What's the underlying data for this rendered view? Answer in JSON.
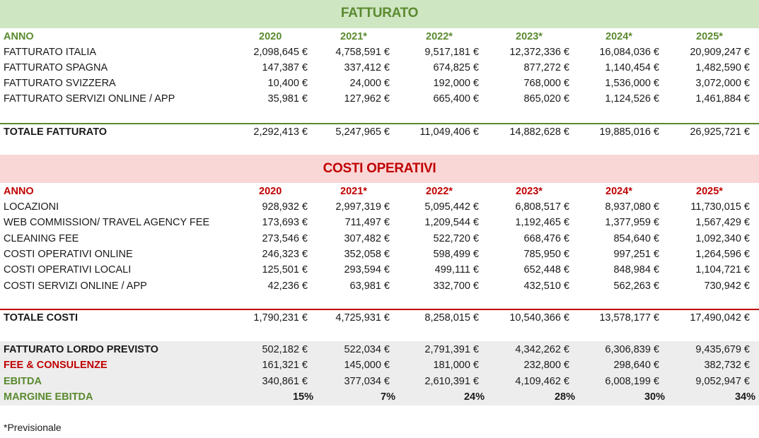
{
  "colors": {
    "revenue_band": "#cfe6c3",
    "revenue_accent": "#5a8a2f",
    "cost_band": "#fad7d7",
    "cost_accent": "#c00000",
    "summary_band": "#ededed"
  },
  "revenue": {
    "title": "FATTURATO",
    "header": {
      "label": "ANNO",
      "years": [
        "2020",
        "2021*",
        "2022*",
        "2023*",
        "2024*",
        "2025*"
      ]
    },
    "rows": [
      {
        "label": "FATTURATO ITALIA",
        "values": [
          "2,098,645 €",
          "4,758,591 €",
          "9,517,181 €",
          "12,372,336 €",
          "16,084,036 €",
          "20,909,247 €"
        ]
      },
      {
        "label": "FATTURATO SPAGNA",
        "values": [
          "147,387 €",
          "337,412 €",
          "674,825 €",
          "877,272 €",
          "1,140,454 €",
          "1,482,590 €"
        ]
      },
      {
        "label": "FATTURATO SVIZZERA",
        "values": [
          "10,400 €",
          "24,000 €",
          "192,000 €",
          "768,000 €",
          "1,536,000 €",
          "3,072,000 €"
        ]
      },
      {
        "label": "FATTURATO SERVIZI ONLINE / APP",
        "values": [
          "35,981 €",
          "127,962 €",
          "665,400 €",
          "865,020 €",
          "1,124,526 €",
          "1,461,884 €"
        ]
      }
    ],
    "total": {
      "label": "TOTALE FATTURATO",
      "values": [
        "2,292,413 €",
        "5,247,965 €",
        "11,049,406 €",
        "14,882,628 €",
        "19,885,016 €",
        "26,925,721 €"
      ]
    }
  },
  "costs": {
    "title": "COSTI OPERATIVI",
    "header": {
      "label": "ANNO",
      "years": [
        "2020",
        "2021*",
        "2022*",
        "2023*",
        "2024*",
        "2025*"
      ]
    },
    "rows": [
      {
        "label": "LOCAZIONI",
        "values": [
          "928,932 €",
          "2,997,319 €",
          "5,095,442 €",
          "6,808,517 €",
          "8,937,080 €",
          "11,730,015 €"
        ]
      },
      {
        "label": "WEB COMMISSION/ TRAVEL AGENCY FEE",
        "values": [
          "173,693 €",
          "711,497 €",
          "1,209,544 €",
          "1,192,465 €",
          "1,377,959 €",
          "1,567,429 €"
        ]
      },
      {
        "label": "CLEANING FEE",
        "values": [
          "273,546 €",
          "307,482 €",
          "522,720 €",
          "668,476 €",
          "854,640 €",
          "1,092,340 €"
        ]
      },
      {
        "label": "COSTI OPERATIVI ONLINE",
        "values": [
          "246,323 €",
          "352,058 €",
          "598,499 €",
          "785,950 €",
          "997,251 €",
          "1,264,596 €"
        ]
      },
      {
        "label": "COSTI OPERATIVI LOCALI",
        "values": [
          "125,501 €",
          "293,594 €",
          "499,111 €",
          "652,448 €",
          "848,984 €",
          "1,104,721 €"
        ]
      },
      {
        "label": "COSTI SERVIZI ONLINE / APP",
        "values": [
          "42,236 €",
          "63,981 €",
          "332,700 €",
          "432,510 €",
          "562,263 €",
          "730,942 €"
        ]
      }
    ],
    "total": {
      "label": "TOTALE COSTI",
      "values": [
        "1,790,231 €",
        "4,725,931 €",
        "8,258,015 €",
        "10,540,366 €",
        "13,578,177 €",
        "17,490,042 €"
      ]
    }
  },
  "summary": {
    "gross": {
      "label": "FATTURATO LORDO PREVISTO",
      "values": [
        "502,182 €",
        "522,034 €",
        "2,791,391 €",
        "4,342,262 €",
        "6,306,839 €",
        "9,435,679 €"
      ]
    },
    "fees": {
      "label": "FEE & CONSULENZE",
      "values": [
        "161,321 €",
        "145,000 €",
        "181,000 €",
        "232,800 €",
        "298,640 €",
        "382,732 €"
      ]
    },
    "ebitda": {
      "label": "EBITDA",
      "values": [
        "340,861 €",
        "377,034 €",
        "2,610,391 €",
        "4,109,462 €",
        "6,008,199 €",
        "9,052,947 €"
      ]
    },
    "margin": {
      "label": "MARGINE EBITDA",
      "values": [
        "15%",
        "7%",
        "24%",
        "28%",
        "30%",
        "34%"
      ]
    }
  },
  "footnote": "*Previsionale"
}
